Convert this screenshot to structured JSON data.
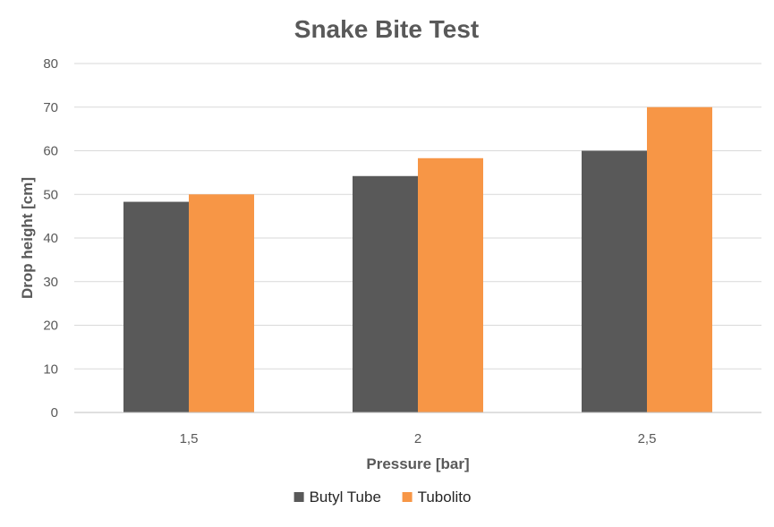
{
  "chart_data": {
    "type": "bar",
    "title": "Snake Bite Test",
    "xlabel": "Pressure [bar]",
    "ylabel": "Drop height [cm]",
    "categories": [
      "1,5",
      "2",
      "2,5"
    ],
    "series": [
      {
        "name": "Butyl Tube",
        "values": [
          48.3,
          54.2,
          60
        ],
        "color": "#595959"
      },
      {
        "name": "Tubolito",
        "values": [
          50,
          58.3,
          70
        ],
        "color": "#f79646"
      }
    ],
    "ylim": [
      0,
      80
    ],
    "yticks": [
      0,
      10,
      20,
      30,
      40,
      50,
      60,
      70,
      80
    ],
    "grid": true,
    "legend_position": "bottom"
  }
}
